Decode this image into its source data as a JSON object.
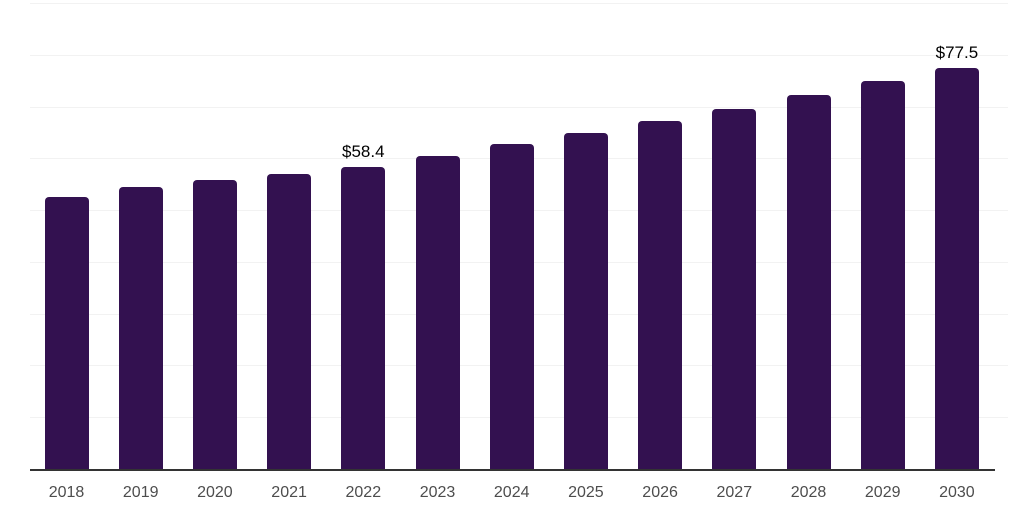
{
  "chart_data": {
    "type": "bar",
    "title": "",
    "xlabel": "",
    "ylabel": "",
    "categories": [
      "2018",
      "2019",
      "2020",
      "2021",
      "2022",
      "2023",
      "2024",
      "2025",
      "2026",
      "2027",
      "2028",
      "2029",
      "2030"
    ],
    "values": [
      52.5,
      54.5,
      55.9,
      56.9,
      58.4,
      60.5,
      62.7,
      64.9,
      67.2,
      69.6,
      72.2,
      75.0,
      77.5
    ],
    "data_labels": [
      {
        "category": "2022",
        "text": "$58.4"
      },
      {
        "category": "2030",
        "text": "$77.5"
      }
    ],
    "ylim": [
      0,
      90
    ],
    "grid_step": 10,
    "grid": "horizontal-only",
    "legend": "none",
    "y_axis_labels_visible": false,
    "colors": {
      "bar": "#331150",
      "grid_line": "#f2f2f2",
      "axis_line": "#333333",
      "tick_label": "#4d4d4d",
      "data_label": "#000000",
      "background": "#ffffff"
    }
  }
}
